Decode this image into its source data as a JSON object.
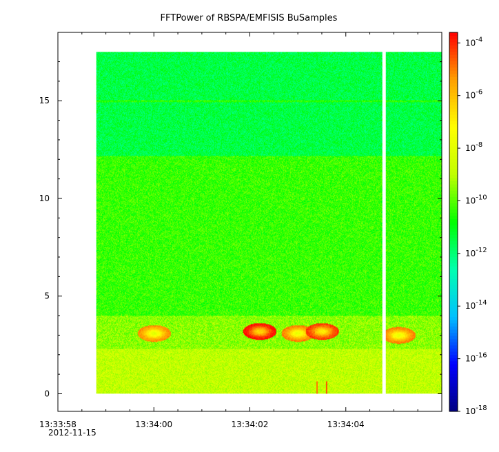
{
  "chart_data": {
    "type": "heatmap",
    "title": "FFTPower of RBSPA/EMFISIS  BuSamples",
    "xlabel": "",
    "ylabel": "",
    "x_start_date": "2012-11-15",
    "xlim": [
      "13:33:58",
      "13:34:06"
    ],
    "x_ticks": [
      {
        "label": "13:33:58",
        "sublabel": "2012-11-15",
        "t": "13:33:58"
      },
      {
        "label": "13:34:00",
        "t": "13:34:00"
      },
      {
        "label": "13:34:02",
        "t": "13:34:02"
      },
      {
        "label": "13:34:04",
        "t": "13:34:04"
      }
    ],
    "ylim": [
      -0.9,
      18.5
    ],
    "y_ticks": [
      0,
      5,
      10,
      15
    ],
    "y_values": [
      0,
      17.5
    ],
    "x_values": [
      "13:33:58.8",
      "13:34:06.0"
    ],
    "data_gap": [
      "13:34:04.75",
      "13:34:04.82"
    ],
    "bands": [
      {
        "y_range": [
          0,
          2.3
        ],
        "log10_power": -8.8
      },
      {
        "y_range": [
          2.3,
          4.0
        ],
        "log10_power": -9.5
      },
      {
        "y_range": [
          4.0,
          12.2
        ],
        "log10_power": -10.3
      },
      {
        "y_range": [
          12.2,
          17.5
        ],
        "log10_power": -11.5
      }
    ],
    "line_feature": {
      "y": 15.0,
      "log10_power": -10.5
    },
    "chorus_features": [
      {
        "t": "13:34:00.0",
        "y": 3.1,
        "log10_power": -8.0
      },
      {
        "t": "13:34:02.2",
        "y": 3.2,
        "log10_power": -6.5
      },
      {
        "t": "13:34:03.0",
        "y": 3.1,
        "log10_power": -7.8
      },
      {
        "t": "13:34:03.5",
        "y": 3.2,
        "log10_power": -7.0
      },
      {
        "t": "13:34:05.1",
        "y": 3.0,
        "log10_power": -7.8
      }
    ],
    "spikes": [
      {
        "t": "13:34:03.4",
        "log10_power": -5.0
      },
      {
        "t": "13:34:03.6",
        "log10_power": -4.6
      }
    ],
    "colorbar": {
      "scale": "log",
      "range": [
        -18,
        -3.6
      ],
      "ticks": [
        -4,
        -6,
        -8,
        -10,
        -12,
        -14,
        -16,
        -18
      ],
      "tick_labels": [
        {
          "base": "10",
          "exp": "-4"
        },
        {
          "base": "10",
          "exp": "-6"
        },
        {
          "base": "10",
          "exp": "-8"
        },
        {
          "base": "10",
          "exp": "-10"
        },
        {
          "base": "10",
          "exp": "-12"
        },
        {
          "base": "10",
          "exp": "-14"
        },
        {
          "base": "10",
          "exp": "-16"
        },
        {
          "base": "10",
          "exp": "-18"
        }
      ],
      "colormap": [
        "#000080",
        "#0000ff",
        "#00c0ff",
        "#00ffb0",
        "#00ff00",
        "#c0ff00",
        "#ffff00",
        "#ffa000",
        "#ff0000"
      ]
    },
    "grid": false,
    "legend": "none"
  }
}
